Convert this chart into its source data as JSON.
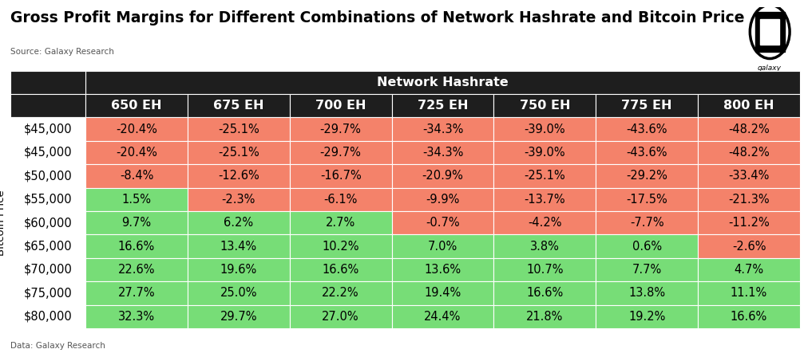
{
  "title": "Gross Profit Margins for Different Combinations of Network Hashrate and Bitcoin Price",
  "source_top": "Source: Galaxy Research",
  "source_bottom": "Data: Galaxy Research",
  "header_row1": "Network Hashrate",
  "col_headers": [
    "650 EH",
    "675 EH",
    "700 EH",
    "725 EH",
    "750 EH",
    "775 EH",
    "800 EH"
  ],
  "row_labels": [
    "$45,000",
    "$45,000",
    "$50,000",
    "$55,000",
    "$60,000",
    "$65,000",
    "$70,000",
    "$75,000",
    "$80,000"
  ],
  "y_axis_label": "Bitcoin Price",
  "data": [
    [
      "-20.4%",
      "-25.1%",
      "-29.7%",
      "-34.3%",
      "-39.0%",
      "-43.6%",
      "-48.2%"
    ],
    [
      "-20.4%",
      "-25.1%",
      "-29.7%",
      "-34.3%",
      "-39.0%",
      "-43.6%",
      "-48.2%"
    ],
    [
      "-8.4%",
      "-12.6%",
      "-16.7%",
      "-20.9%",
      "-25.1%",
      "-29.2%",
      "-33.4%"
    ],
    [
      "1.5%",
      "-2.3%",
      "-6.1%",
      "-9.9%",
      "-13.7%",
      "-17.5%",
      "-21.3%"
    ],
    [
      "9.7%",
      "6.2%",
      "2.7%",
      "-0.7%",
      "-4.2%",
      "-7.7%",
      "-11.2%"
    ],
    [
      "16.6%",
      "13.4%",
      "10.2%",
      "7.0%",
      "3.8%",
      "0.6%",
      "-2.6%"
    ],
    [
      "22.6%",
      "19.6%",
      "16.6%",
      "13.6%",
      "10.7%",
      "7.7%",
      "4.7%"
    ],
    [
      "27.7%",
      "25.0%",
      "22.2%",
      "19.4%",
      "16.6%",
      "13.8%",
      "11.1%"
    ],
    [
      "32.3%",
      "29.7%",
      "27.0%",
      "24.4%",
      "21.8%",
      "19.2%",
      "16.6%"
    ]
  ],
  "values": [
    [
      -20.4,
      -25.1,
      -29.7,
      -34.3,
      -39.0,
      -43.6,
      -48.2
    ],
    [
      -20.4,
      -25.1,
      -29.7,
      -34.3,
      -39.0,
      -43.6,
      -48.2
    ],
    [
      -8.4,
      -12.6,
      -16.7,
      -20.9,
      -25.1,
      -29.2,
      -33.4
    ],
    [
      1.5,
      -2.3,
      -6.1,
      -9.9,
      -13.7,
      -17.5,
      -21.3
    ],
    [
      9.7,
      6.2,
      2.7,
      -0.7,
      -4.2,
      -7.7,
      -11.2
    ],
    [
      16.6,
      13.4,
      10.2,
      7.0,
      3.8,
      0.6,
      -2.6
    ],
    [
      22.6,
      19.6,
      16.6,
      13.6,
      10.7,
      7.7,
      4.7
    ],
    [
      27.7,
      25.0,
      22.2,
      19.4,
      16.6,
      13.8,
      11.1
    ],
    [
      32.3,
      29.7,
      27.0,
      24.4,
      21.8,
      19.2,
      16.6
    ]
  ],
  "positive_color": "#77dd77",
  "negative_color": "#f4826a",
  "header_bg": "#1e1e1e",
  "header_fg": "#ffffff",
  "title_fontsize": 13.5,
  "cell_fontsize": 10.5,
  "header_fontsize": 11.5,
  "row_label_fontsize": 10.5,
  "yaxis_label_fontsize": 9.5
}
